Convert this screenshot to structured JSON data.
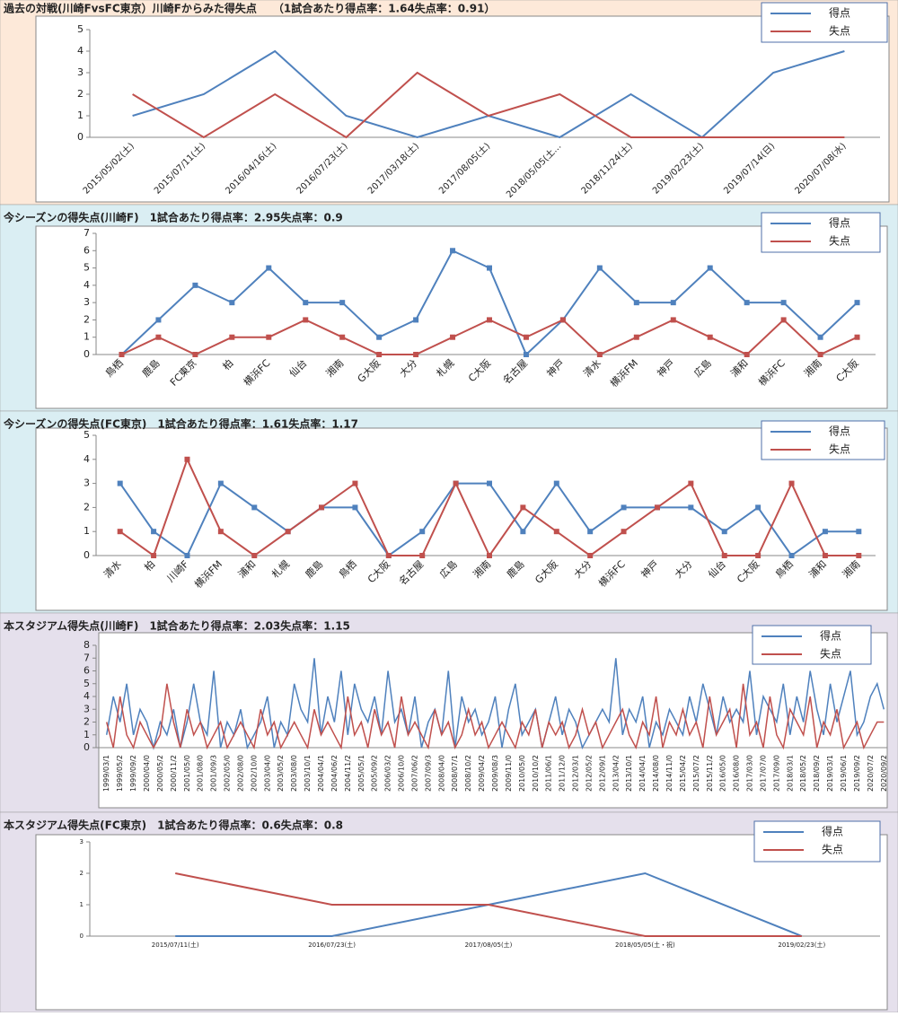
{
  "chart_data": [
    {
      "type": "line",
      "title": "過去の対戦(川崎FvsFC東京）川崎Fからみた得失点　　（1試合あたり得点率：1.64失点率：0.91）",
      "categories": [
        "2015/05/02(土)",
        "2015/07/11(土)",
        "2016/04/16(土)",
        "2016/07/23(土)",
        "2017/03/18(土)",
        "2017/08/05(土)",
        "2018/05/05(土…",
        "2018/11/24(土)",
        "2019/02/23(土)",
        "2019/07/14(日)",
        "2020/07/08(水)"
      ],
      "series": [
        {
          "name": "得点",
          "color": "#4f81bd",
          "values": [
            1,
            2,
            4,
            1,
            0,
            1,
            0,
            2,
            0,
            3,
            4
          ]
        },
        {
          "name": "失点",
          "color": "#c0504d",
          "values": [
            2,
            0,
            2,
            0,
            3,
            1,
            2,
            0,
            0,
            0,
            0
          ]
        }
      ],
      "ylim": [
        0,
        5
      ],
      "yticks": [
        0,
        1,
        2,
        3,
        4,
        5
      ],
      "legend": "upper right"
    },
    {
      "type": "line",
      "title": "今シーズンの得失点(川崎F)　1試合あたり得点率：2.95失点率：0.9",
      "marker": "square",
      "categories": [
        "鳥栖",
        "鹿島",
        "FC東京",
        "柏",
        "横浜FC",
        "仙台",
        "湘南",
        "G大阪",
        "大分",
        "札幌",
        "C大阪",
        "名古屋",
        "神戸",
        "清水",
        "横浜FM",
        "神戸",
        "広島",
        "浦和",
        "横浜FC",
        "湘南",
        "C大阪"
      ],
      "series": [
        {
          "name": "得点",
          "color": "#4f81bd",
          "values": [
            0,
            2,
            4,
            3,
            5,
            3,
            3,
            1,
            2,
            6,
            5,
            0,
            2,
            5,
            3,
            3,
            5,
            3,
            3,
            1,
            3
          ]
        },
        {
          "name": "失点",
          "color": "#c0504d",
          "values": [
            0,
            1,
            0,
            1,
            1,
            2,
            1,
            0,
            0,
            1,
            2,
            1,
            2,
            0,
            1,
            2,
            1,
            0,
            2,
            0,
            1
          ]
        }
      ],
      "ylim": [
        0,
        7
      ],
      "yticks": [
        0,
        1,
        2,
        3,
        4,
        5,
        6,
        7
      ],
      "legend": "upper right"
    },
    {
      "type": "line",
      "title": "今シーズンの得失点(FC東京)　1試合あたり得点率：1.61失点率：1.17",
      "marker": "square",
      "categories": [
        "清水",
        "柏",
        "川崎F",
        "横浜FM",
        "浦和",
        "札幌",
        "鹿島",
        "鳥栖",
        "C大阪",
        "名古屋",
        "広島",
        "湘南",
        "鹿島",
        "G大阪",
        "大分",
        "横浜FC",
        "神戸",
        "大分",
        "仙台",
        "C大阪",
        "鳥栖",
        "浦和",
        "湘南"
      ],
      "series": [
        {
          "name": "得点",
          "color": "#4f81bd",
          "values": [
            3,
            1,
            0,
            3,
            2,
            1,
            2,
            2,
            0,
            1,
            3,
            3,
            1,
            3,
            1,
            2,
            2,
            2,
            1,
            2,
            0,
            1,
            1
          ]
        },
        {
          "name": "失点",
          "color": "#c0504d",
          "values": [
            1,
            0,
            4,
            1,
            0,
            1,
            2,
            3,
            0,
            0,
            3,
            0,
            2,
            1,
            0,
            1,
            2,
            3,
            0,
            0,
            3,
            0,
            0
          ]
        }
      ],
      "ylim": [
        0,
        5
      ],
      "yticks": [
        0,
        1,
        2,
        3,
        4,
        5
      ],
      "legend": "upper right"
    },
    {
      "type": "line",
      "title": "本スタジアム得失点(川崎F)　1試合あたり得点率：2.03失点率：1.15",
      "categories": [
        "1999/03/1",
        null,
        "1999/05/2",
        null,
        "1999/09/2",
        null,
        "2000/04/0",
        null,
        "2000/05/2",
        null,
        "2000/11/2",
        null,
        "2001/05/0",
        null,
        "2001/08/0",
        null,
        "2001/09/3",
        null,
        "2002/05/0",
        null,
        "2002/08/0",
        null,
        "2002/10/0",
        null,
        "2003/04/0",
        null,
        "2003/05/2",
        null,
        "2003/08/0",
        null,
        "2003/10/1",
        null,
        "2004/04/1",
        null,
        "2004/06/2",
        null,
        "2004/11/2",
        null,
        "2005/05/1",
        null,
        "2005/09/2",
        null,
        "2006/03/2",
        null,
        "2006/10/0",
        null,
        "2007/06/2",
        null,
        "2007/09/3",
        null,
        "2008/04/0",
        null,
        "2008/07/1",
        null,
        "2008/10/2",
        null,
        "2009/04/2",
        null,
        "2009/08/3",
        null,
        "2009/11/0",
        null,
        "2010/05/0",
        null,
        "2010/10/2",
        null,
        "2011/06/1",
        null,
        "2011/12/0",
        null,
        "2012/03/1",
        null,
        "2012/05/2",
        null,
        "2012/09/1",
        null,
        "2013/04/2",
        null,
        "2013/10/1",
        null,
        "2014/04/1",
        null,
        "2014/08/0",
        null,
        "2014/11/0",
        null,
        "2015/04/2",
        null,
        "2015/07/2",
        null,
        "2015/11/2",
        null,
        "2016/05/0",
        null,
        "2016/08/0",
        null,
        "2017/03/0",
        null,
        "2017/07/0",
        null,
        "2017/09/0",
        null,
        "2018/03/1",
        null,
        "2018/05/2",
        null,
        "2018/09/2",
        null,
        "2019/03/1",
        null,
        "2019/06/1",
        null,
        "2019/09/2",
        null,
        "2020/07/2",
        null,
        "2020/09/2"
      ],
      "series": [
        {
          "name": "得点",
          "color": "#4f81bd",
          "values": [
            1,
            4,
            2,
            5,
            1,
            3,
            2,
            0,
            2,
            1,
            3,
            0,
            2,
            5,
            2,
            1,
            6,
            0,
            2,
            1,
            3,
            0,
            1,
            2,
            4,
            0,
            2,
            1,
            5,
            3,
            2,
            7,
            1,
            4,
            2,
            6,
            1,
            5,
            3,
            2,
            4,
            1,
            6,
            2,
            3,
            1,
            4,
            0,
            2,
            3,
            1,
            6,
            0,
            4,
            2,
            3,
            1,
            2,
            4,
            0,
            3,
            5,
            1,
            2,
            3,
            0,
            2,
            4,
            1,
            3,
            2,
            0,
            1,
            2,
            3,
            2,
            7,
            1,
            3,
            2,
            4,
            0,
            2,
            1,
            3,
            2,
            1,
            4,
            2,
            5,
            3,
            1,
            4,
            2,
            3,
            2,
            6,
            1,
            4,
            3,
            2,
            5,
            1,
            4,
            2,
            6,
            3,
            1,
            5,
            2,
            4,
            6,
            1,
            2,
            4,
            5,
            3
          ]
        },
        {
          "name": "失点",
          "color": "#c0504d",
          "values": [
            2,
            0,
            4,
            1,
            0,
            2,
            1,
            0,
            1,
            5,
            2,
            0,
            3,
            1,
            2,
            0,
            1,
            2,
            0,
            1,
            2,
            1,
            0,
            3,
            1,
            2,
            0,
            1,
            2,
            1,
            0,
            3,
            1,
            2,
            1,
            0,
            4,
            1,
            2,
            0,
            3,
            1,
            2,
            0,
            4,
            1,
            2,
            1,
            0,
            3,
            1,
            2,
            0,
            1,
            3,
            1,
            2,
            0,
            1,
            2,
            1,
            0,
            2,
            1,
            3,
            0,
            2,
            1,
            2,
            0,
            1,
            3,
            1,
            2,
            0,
            1,
            2,
            3,
            1,
            0,
            2,
            1,
            4,
            0,
            2,
            1,
            3,
            1,
            2,
            0,
            4,
            1,
            2,
            3,
            0,
            5,
            1,
            2,
            0,
            4,
            1,
            0,
            3,
            2,
            1,
            4,
            0,
            2,
            1,
            3,
            0,
            1,
            2,
            0,
            1,
            2,
            2
          ]
        }
      ],
      "ylim": [
        0,
        8
      ],
      "yticks": [
        0,
        1,
        2,
        3,
        4,
        5,
        6,
        7,
        8
      ],
      "legend": "upper right"
    },
    {
      "type": "line",
      "title": "本スタジアム得失点(FC東京)　1試合あたり得点率：0.6失点率：0.8",
      "categories": [
        "2015/07/11(土)",
        "2016/07/23(土)",
        "2017/08/05(土)",
        "2018/05/05(土・祝)",
        "2019/02/23(土)"
      ],
      "series": [
        {
          "name": "得点",
          "color": "#4f81bd",
          "values": [
            0,
            0,
            1,
            2,
            0
          ]
        },
        {
          "name": "失点",
          "color": "#c0504d",
          "values": [
            2,
            1,
            1,
            0,
            0
          ]
        }
      ],
      "ylim": [
        0,
        3
      ],
      "yticks": [
        0,
        1,
        2,
        3
      ],
      "legend": "upper right"
    }
  ]
}
